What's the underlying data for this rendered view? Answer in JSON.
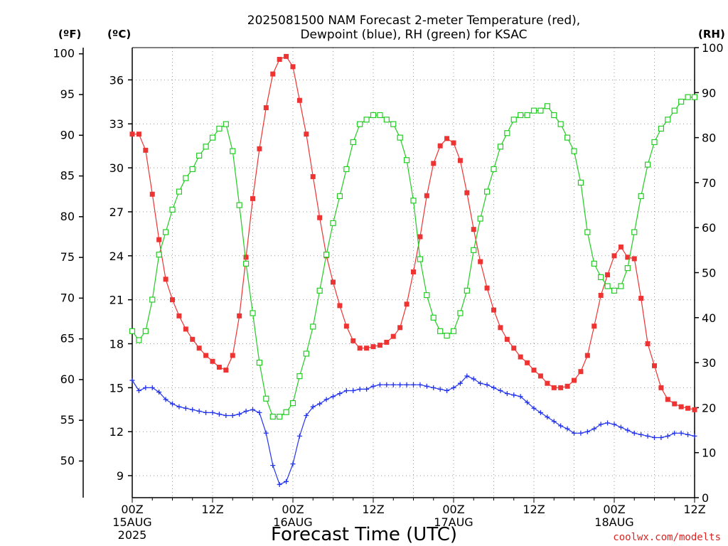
{
  "chart_data": {
    "type": "line",
    "title_line1": "2025081500 NAM Forecast 2-meter Temperature (red),",
    "title_line2": "Dewpoint (blue), RH (green) for KSAC",
    "xlabel": "Forecast Time (UTC)",
    "credit": "coolwx.com/modelts",
    "units": {
      "fahrenheit": "(ºF)",
      "celsius": "(ºC)",
      "rh": "(RH)"
    },
    "x_ticks": [
      {
        "hour": 0,
        "l1": "00Z",
        "l2": "15AUG",
        "l3": "2025"
      },
      {
        "hour": 12,
        "l1": "12Z",
        "l2": "",
        "l3": ""
      },
      {
        "hour": 24,
        "l1": "00Z",
        "l2": "16AUG",
        "l3": ""
      },
      {
        "hour": 36,
        "l1": "12Z",
        "l2": "",
        "l3": ""
      },
      {
        "hour": 48,
        "l1": "00Z",
        "l2": "17AUG",
        "l3": ""
      },
      {
        "hour": 60,
        "l1": "12Z",
        "l2": "",
        "l3": ""
      },
      {
        "hour": 72,
        "l1": "00Z",
        "l2": "18AUG",
        "l3": ""
      },
      {
        "hour": 84,
        "l1": "12Z",
        "l2": "",
        "l3": ""
      }
    ],
    "xlim": [
      0,
      84
    ],
    "ylim_celsius": [
      7.5,
      38.2
    ],
    "ylim_rh": [
      0,
      100
    ],
    "celsius_ticks": [
      9,
      12,
      15,
      18,
      21,
      24,
      27,
      30,
      33,
      36
    ],
    "fahrenheit_ticks": [
      50,
      55,
      60,
      65,
      70,
      75,
      80,
      85,
      90,
      95,
      100
    ],
    "rh_ticks": [
      0,
      10,
      20,
      30,
      40,
      50,
      60,
      70,
      80,
      90,
      100
    ],
    "colors": {
      "temperature": "#ee3333",
      "dewpoint": "#2233ee",
      "rh": "#22cc22",
      "grid": "#999999",
      "axis": "#000000"
    },
    "series": [
      {
        "name": "Temperature",
        "unit": "C",
        "marker": "filled-square",
        "x": [
          0,
          1,
          2,
          3,
          4,
          5,
          6,
          7,
          8,
          9,
          10,
          11,
          12,
          13,
          14,
          15,
          16,
          17,
          18,
          19,
          20,
          21,
          22,
          23,
          24,
          25,
          26,
          27,
          28,
          29,
          30,
          31,
          32,
          33,
          34,
          35,
          36,
          37,
          38,
          39,
          40,
          41,
          42,
          43,
          44,
          45,
          46,
          47,
          48,
          49,
          50,
          51,
          52,
          53,
          54,
          55,
          56,
          57,
          58,
          59,
          60,
          61,
          62,
          63,
          64,
          65,
          66,
          67,
          68,
          69,
          70,
          71,
          72,
          73,
          74,
          75,
          76,
          77,
          78,
          79,
          80,
          81,
          82,
          83,
          84
        ],
        "values": [
          32.3,
          32.3,
          31.2,
          28.2,
          25.1,
          22.4,
          21.0,
          19.9,
          19.0,
          18.3,
          17.7,
          17.2,
          16.8,
          16.4,
          16.2,
          17.2,
          19.9,
          23.9,
          27.9,
          31.3,
          34.1,
          36.4,
          37.4,
          37.6,
          36.9,
          34.6,
          32.3,
          29.4,
          26.6,
          24.0,
          22.2,
          20.6,
          19.2,
          18.2,
          17.7,
          17.7,
          17.8,
          17.9,
          18.1,
          18.5,
          19.1,
          20.7,
          22.9,
          25.3,
          28.1,
          30.3,
          31.5,
          32.0,
          31.7,
          30.5,
          28.3,
          25.8,
          23.6,
          21.8,
          20.3,
          19.1,
          18.3,
          17.7,
          17.1,
          16.7,
          16.2,
          15.8,
          15.3,
          15.0,
          15.0,
          15.1,
          15.5,
          16.1,
          17.2,
          19.2,
          21.3,
          22.7,
          24.0,
          24.6,
          23.9,
          23.8,
          21.1,
          18.0,
          16.5,
          15.0,
          14.2,
          13.9,
          13.7,
          13.6,
          13.5
        ]
      },
      {
        "name": "Dewpoint",
        "unit": "C",
        "marker": "plus",
        "x": [
          0,
          1,
          2,
          3,
          4,
          5,
          6,
          7,
          8,
          9,
          10,
          11,
          12,
          13,
          14,
          15,
          16,
          17,
          18,
          19,
          20,
          21,
          22,
          23,
          24,
          25,
          26,
          27,
          28,
          29,
          30,
          31,
          32,
          33,
          34,
          35,
          36,
          37,
          38,
          39,
          40,
          41,
          42,
          43,
          44,
          45,
          46,
          47,
          48,
          49,
          50,
          51,
          52,
          53,
          54,
          55,
          56,
          57,
          58,
          59,
          60,
          61,
          62,
          63,
          64,
          65,
          66,
          67,
          68,
          69,
          70,
          71,
          72,
          73,
          74,
          75,
          76,
          77,
          78,
          79,
          80,
          81,
          82,
          83,
          84
        ],
        "values": [
          15.5,
          14.8,
          15.0,
          15.0,
          14.7,
          14.2,
          13.9,
          13.7,
          13.6,
          13.5,
          13.4,
          13.3,
          13.3,
          13.2,
          13.1,
          13.1,
          13.2,
          13.4,
          13.5,
          13.3,
          11.9,
          9.7,
          8.4,
          8.6,
          9.8,
          11.7,
          13.1,
          13.7,
          13.9,
          14.2,
          14.4,
          14.6,
          14.8,
          14.8,
          14.9,
          14.9,
          15.1,
          15.2,
          15.2,
          15.2,
          15.2,
          15.2,
          15.2,
          15.2,
          15.1,
          15.0,
          14.9,
          14.8,
          15.0,
          15.3,
          15.8,
          15.6,
          15.3,
          15.2,
          15.0,
          14.8,
          14.6,
          14.5,
          14.4,
          14.0,
          13.6,
          13.3,
          13.0,
          12.7,
          12.4,
          12.2,
          11.9,
          11.9,
          12.0,
          12.2,
          12.5,
          12.6,
          12.5,
          12.3,
          12.1,
          11.9,
          11.8,
          11.7,
          11.6,
          11.6,
          11.7,
          11.9,
          11.9,
          11.8,
          11.7
        ]
      },
      {
        "name": "RH",
        "unit": "%",
        "marker": "open-square",
        "x": [
          0,
          1,
          2,
          3,
          4,
          5,
          6,
          7,
          8,
          9,
          10,
          11,
          12,
          13,
          14,
          15,
          16,
          17,
          18,
          19,
          20,
          21,
          22,
          23,
          24,
          25,
          26,
          27,
          28,
          29,
          30,
          31,
          32,
          33,
          34,
          35,
          36,
          37,
          38,
          39,
          40,
          41,
          42,
          43,
          44,
          45,
          46,
          47,
          48,
          49,
          50,
          51,
          52,
          53,
          54,
          55,
          56,
          57,
          58,
          59,
          60,
          61,
          62,
          63,
          64,
          65,
          66,
          67,
          68,
          69,
          70,
          71,
          72,
          73,
          74,
          75,
          76,
          77,
          78,
          79,
          80,
          81,
          82,
          83,
          84
        ],
        "values": [
          37,
          35,
          37,
          44,
          54,
          59,
          64,
          68,
          71,
          73,
          76,
          78,
          80,
          82,
          83,
          77,
          65,
          52,
          41,
          30,
          22,
          18,
          18,
          19,
          21,
          27,
          32,
          38,
          46,
          54,
          61,
          67,
          73,
          79,
          83,
          84,
          85,
          85,
          84,
          83,
          80,
          75,
          66,
          53,
          45,
          40,
          37,
          36,
          37,
          41,
          46,
          55,
          62,
          68,
          73,
          78,
          81,
          84,
          85,
          85,
          86,
          86,
          87,
          85,
          83,
          80,
          77,
          70,
          59,
          52,
          49,
          47,
          46,
          47,
          51,
          59,
          67,
          74,
          79,
          82,
          84,
          86,
          88,
          89,
          89
        ]
      }
    ]
  }
}
